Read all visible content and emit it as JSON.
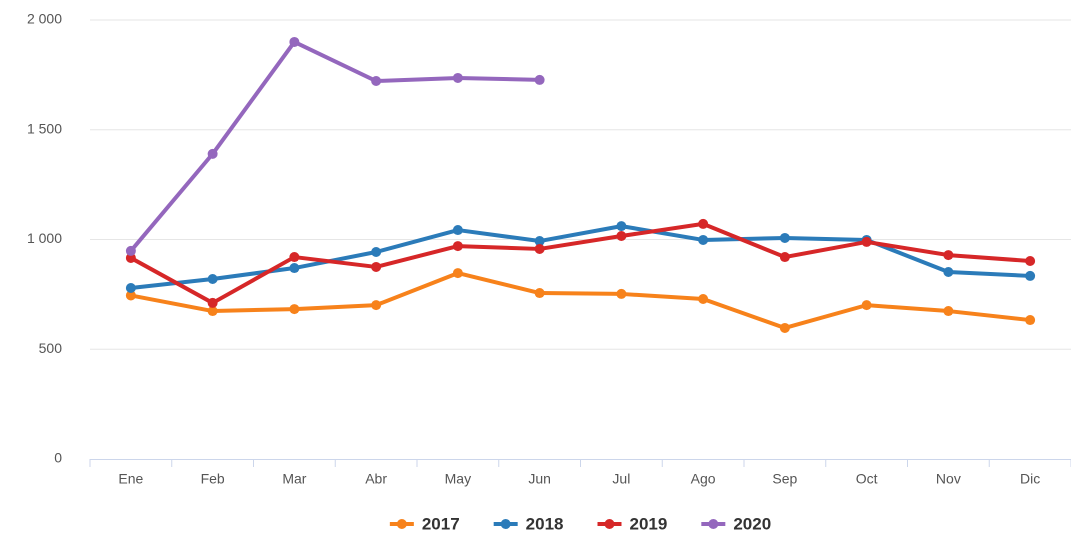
{
  "chart_data": {
    "type": "line",
    "categories": [
      "Ene",
      "Feb",
      "Mar",
      "Abr",
      "May",
      "Jun",
      "Jul",
      "Ago",
      "Sep",
      "Oct",
      "Nov",
      "Dic"
    ],
    "series": [
      {
        "name": "2017",
        "color": "#f7821b",
        "values": [
          745,
          674,
          683,
          701,
          847,
          756,
          752,
          729,
          597,
          701,
          674,
          633
        ]
      },
      {
        "name": "2018",
        "color": "#2b7bb9",
        "values": [
          779,
          820,
          870,
          943,
          1043,
          993,
          1061,
          998,
          1007,
          998,
          852,
          834
        ]
      },
      {
        "name": "2019",
        "color": "#d62728",
        "values": [
          916,
          711,
          920,
          875,
          970,
          957,
          1016,
          1071,
          920,
          989,
          929,
          902
        ]
      },
      {
        "name": "2020",
        "color": "#9467bd",
        "values": [
          948,
          1390,
          1900,
          1722,
          1736,
          1727,
          null,
          null,
          null,
          null,
          null,
          null
        ]
      }
    ],
    "ylim": [
      0,
      2000
    ],
    "yticks": [
      0,
      500,
      {
        "value": 1000,
        "label": "1 000"
      },
      {
        "value": 1500,
        "label": "1 500"
      },
      {
        "value": 2000,
        "label": "2 000"
      }
    ],
    "grid": true,
    "legend": "bottom"
  }
}
